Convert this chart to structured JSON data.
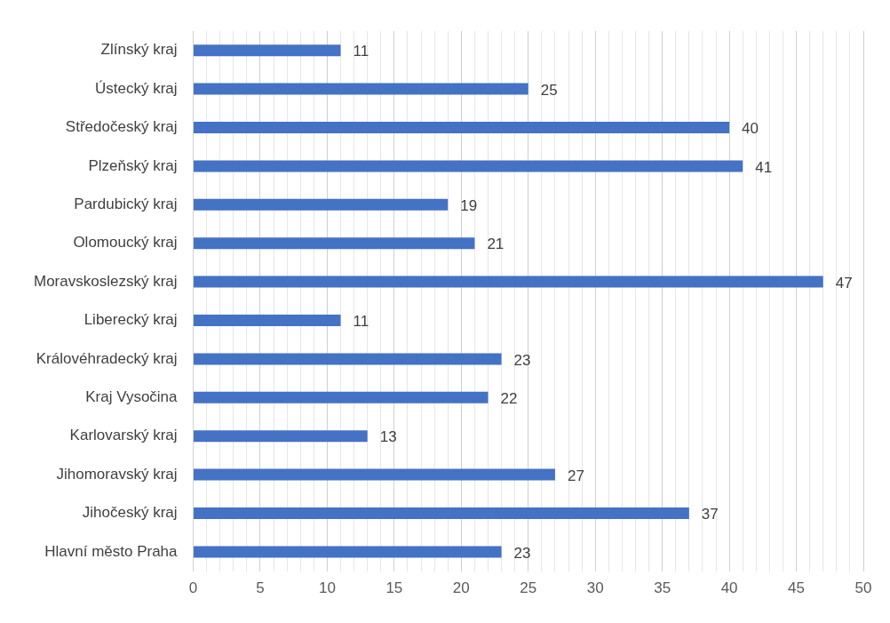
{
  "chart_data": {
    "type": "bar",
    "orientation": "horizontal",
    "categories": [
      "Zlínský kraj",
      "Ústecký kraj",
      "Středočeský kraj",
      "Plzeňský kraj",
      "Pardubický kraj",
      "Olomoucký kraj",
      "Moravskoslezský kraj",
      "Liberecký kraj",
      "Královéhradecký kraj",
      "Kraj Vysočina",
      "Karlovarský kraj",
      "Jihomoravský kraj",
      "Jihočeský kraj",
      "Hlavní město Praha"
    ],
    "values": [
      11,
      25,
      40,
      41,
      19,
      21,
      47,
      11,
      23,
      22,
      13,
      27,
      37,
      23
    ],
    "color": "#4472c4",
    "data_labels": true,
    "grid": "x",
    "legend": false,
    "xlim": [
      0,
      50
    ],
    "xticks": [
      0,
      {
        "value": 1,
        "label": null
      },
      {
        "value": 2,
        "label": null
      },
      {
        "value": 3,
        "label": null
      },
      {
        "value": 4,
        "label": null
      },
      5,
      {
        "value": 6,
        "label": null
      },
      {
        "value": 7,
        "label": null
      },
      {
        "value": 8,
        "label": null
      },
      {
        "value": 9,
        "label": null
      },
      10,
      {
        "value": 11,
        "label": null
      },
      {
        "value": 12,
        "label": null
      },
      {
        "value": 13,
        "label": null
      },
      {
        "value": 14,
        "label": null
      },
      15,
      {
        "value": 16,
        "label": null
      },
      {
        "value": 17,
        "label": null
      },
      {
        "value": 18,
        "label": null
      },
      {
        "value": 19,
        "label": null
      },
      20,
      {
        "value": 21,
        "label": null
      },
      {
        "value": 22,
        "label": null
      },
      {
        "value": 23,
        "label": null
      },
      {
        "value": 24,
        "label": null
      },
      25,
      {
        "value": 26,
        "label": null
      },
      {
        "value": 27,
        "label": null
      },
      {
        "value": 28,
        "label": null
      },
      {
        "value": 29,
        "label": null
      },
      30,
      {
        "value": 31,
        "label": null
      },
      {
        "value": 32,
        "label": null
      },
      {
        "value": 33,
        "label": null
      },
      {
        "value": 34,
        "label": null
      },
      35,
      {
        "value": 36,
        "label": null
      },
      {
        "value": 37,
        "label": null
      },
      {
        "value": 38,
        "label": null
      },
      {
        "value": 39,
        "label": null
      },
      40,
      {
        "value": 41,
        "label": null
      },
      {
        "value": 42,
        "label": null
      },
      {
        "value": 43,
        "label": null
      },
      {
        "value": 44,
        "label": null
      },
      45,
      {
        "value": 46,
        "label": null
      },
      {
        "value": 47,
        "label": null
      },
      {
        "value": 48,
        "label": null
      },
      {
        "value": 49,
        "label": null
      },
      50
    ]
  }
}
